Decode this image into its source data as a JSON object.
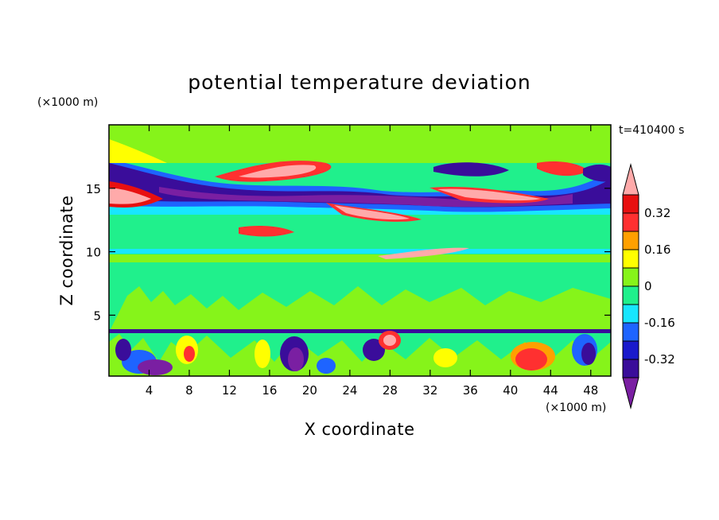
{
  "chart_data": {
    "type": "heatmap",
    "title": "potential temperature deviation",
    "time_label": "t=410400 s",
    "xlabel": "X coordinate",
    "ylabel": "Z coordinate",
    "x_unit": "(×1000 m)",
    "y_unit": "(×1000 m)",
    "xlim": [
      0,
      50
    ],
    "ylim": [
      0.2,
      20
    ],
    "x_ticks": [
      4,
      8,
      12,
      16,
      20,
      24,
      28,
      32,
      36,
      40,
      44,
      48
    ],
    "y_ticks": [
      5,
      10,
      15
    ],
    "colorbar": {
      "levels": [
        -0.4,
        -0.32,
        -0.24,
        -0.16,
        -0.08,
        0,
        0.08,
        0.16,
        0.24,
        0.32,
        0.4
      ],
      "labels": [
        "0.32",
        "0.16",
        "0",
        "-0.16",
        "-0.32"
      ],
      "label_values": [
        0.32,
        0.16,
        0,
        -0.16,
        -0.32
      ],
      "colors": [
        "#7a1fa2",
        "#3a0d9a",
        "#1a1acc",
        "#1e64ff",
        "#18e6ff",
        "#20f08c",
        "#86f41a",
        "#ffff00",
        "#ffa000",
        "#ff3030",
        "#e81010",
        "#ffaaaa"
      ]
    },
    "bands": [
      {
        "z": [
          0.2,
          3.6
        ],
        "description": "turbulent boundary layer",
        "dominant": "mixed"
      },
      {
        "z": [
          3.6,
          10.0
        ],
        "dominant": "green"
      },
      {
        "z": [
          12.0,
          18.0
        ],
        "dominant": "purple-blue with pink layers"
      }
    ]
  }
}
